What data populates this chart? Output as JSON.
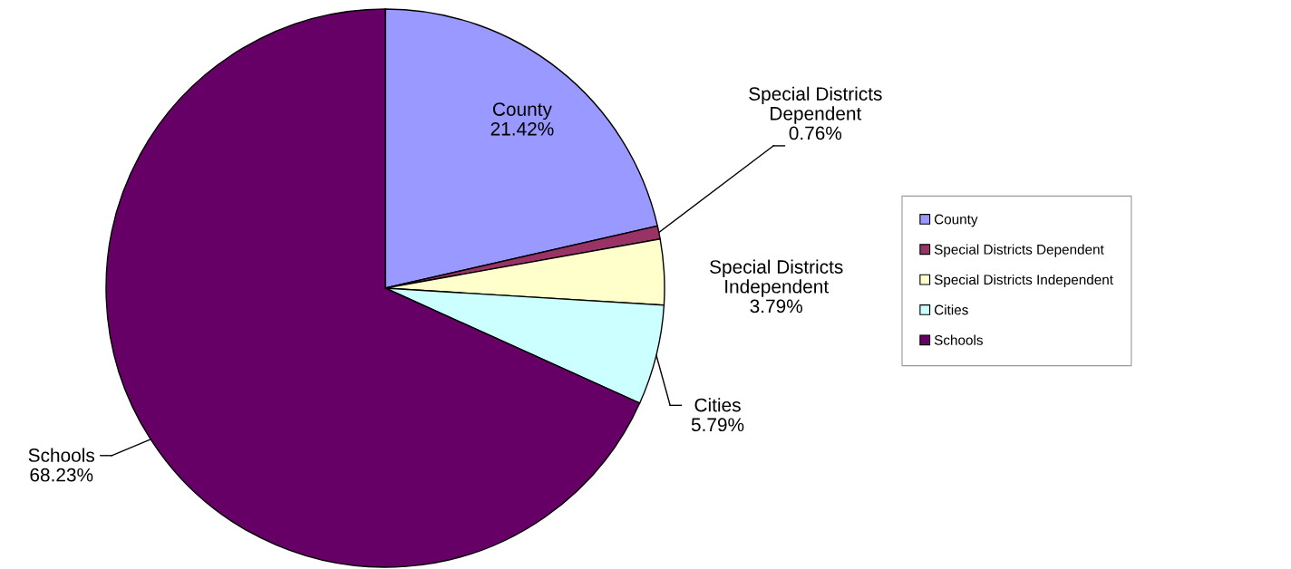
{
  "chart_data": {
    "type": "pie",
    "categories": [
      "County",
      "Special Districts Dependent",
      "Special Districts Independent",
      "Cities",
      "Schools"
    ],
    "values": [
      21.42,
      0.76,
      3.79,
      5.79,
      68.23
    ],
    "colors": [
      "#9999ff",
      "#993366",
      "#ffffcc",
      "#ccffff",
      "#660066"
    ],
    "value_labels": [
      "21.42%",
      "0.76%",
      "3.79%",
      "5.79%",
      "68.23%"
    ],
    "legend": "right"
  }
}
